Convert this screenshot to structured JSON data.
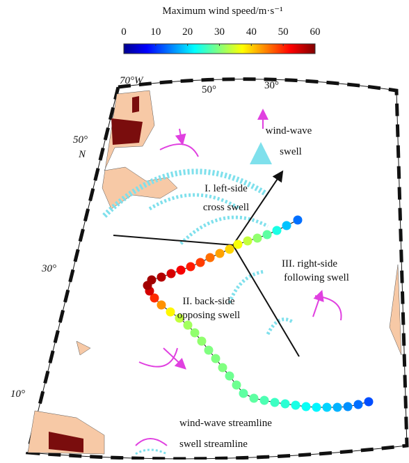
{
  "colorbar": {
    "title": "Maximum wind speed/m·s⁻¹",
    "lim": [
      0,
      60
    ],
    "ticks": [
      0,
      10,
      20,
      30,
      40,
      50,
      60
    ]
  },
  "map": {
    "lon_labels": [
      "70°W",
      "50°",
      "30°"
    ],
    "lat_labels": [
      "50°",
      "30°",
      "10°"
    ],
    "lat_unit": "N"
  },
  "annotations": {
    "left": [
      "I. left-side",
      "cross swell"
    ],
    "back": [
      "II. back-side",
      "opposing swell"
    ],
    "right": [
      "III. right-side",
      "following swell"
    ]
  },
  "legend_top": [
    "wind-wave",
    "swell"
  ],
  "legend_bottom": [
    "wind-wave streamline",
    "swell streamline"
  ],
  "track": {
    "wind_speed": [
      12,
      14,
      16,
      18,
      20,
      22,
      23,
      24,
      25,
      26,
      27,
      28,
      28,
      29,
      29,
      30,
      30,
      30,
      31,
      31,
      32,
      34,
      38,
      44,
      50,
      55,
      58,
      58,
      57,
      55,
      53,
      51,
      49,
      46,
      43,
      40,
      37,
      34,
      31,
      28,
      24,
      19,
      14
    ]
  }
}
